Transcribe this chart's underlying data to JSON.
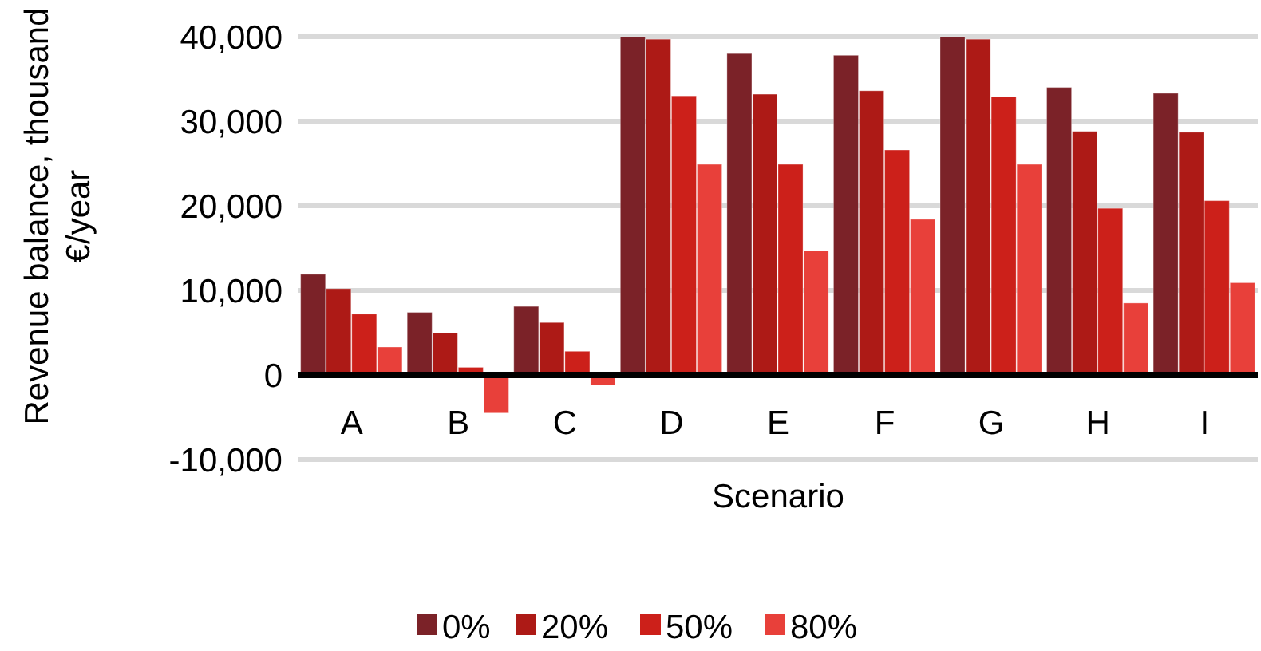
{
  "chart_data": {
    "type": "bar",
    "xlabel": "Scenario",
    "ylabel": "Revenue balance, thousand €/year",
    "categories": [
      "A",
      "B",
      "C",
      "D",
      "E",
      "F",
      "G",
      "H",
      "I"
    ],
    "series": [
      {
        "name": "0%",
        "color": "#7b2228",
        "values": [
          11900,
          7400,
          8100,
          40000,
          38000,
          37800,
          40000,
          34000,
          33300
        ]
      },
      {
        "name": "20%",
        "color": "#ad1a16",
        "values": [
          10200,
          5000,
          6200,
          39700,
          33200,
          33600,
          39700,
          28800,
          28700
        ]
      },
      {
        "name": "50%",
        "color": "#cc201a",
        "values": [
          7200,
          900,
          2800,
          33000,
          24900,
          26600,
          32900,
          19700,
          20600
        ]
      },
      {
        "name": "80%",
        "color": "#e8403a",
        "values": [
          3300,
          -4500,
          -1200,
          24900,
          14700,
          18400,
          24900,
          8500,
          10900
        ]
      }
    ],
    "ylim": [
      -10000,
      40000
    ],
    "yticks": [
      {
        "value": -10000,
        "label": "-10,000"
      },
      {
        "value": 0,
        "label": "0"
      },
      {
        "value": 10000,
        "label": "10,000"
      },
      {
        "value": 20000,
        "label": "20,000"
      },
      {
        "value": 30000,
        "label": "30,000"
      },
      {
        "value": 40000,
        "label": "40,000"
      }
    ],
    "grid": "y",
    "legend": "bottom"
  }
}
